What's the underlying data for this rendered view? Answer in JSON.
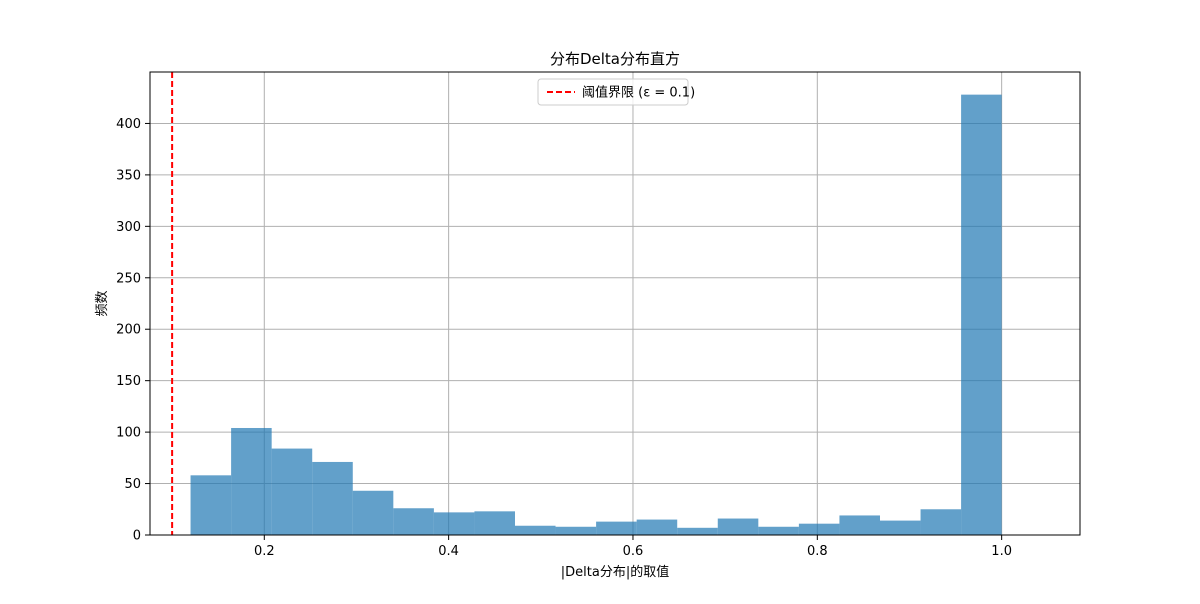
{
  "chart_data": {
    "type": "bar",
    "title": "分布Delta分布直方",
    "xlabel": "|Delta分布|的取值",
    "ylabel": "频数",
    "xlim": [
      0.076,
      1.085
    ],
    "ylim": [
      0,
      450
    ],
    "grid": true,
    "x_ticks": [
      0.2,
      0.4,
      0.6,
      0.8,
      1.0
    ],
    "x_tick_labels": [
      "0.2",
      "0.4",
      "0.6",
      "0.8",
      "1.0"
    ],
    "y_ticks": [
      0,
      50,
      100,
      150,
      200,
      250,
      300,
      350,
      400
    ],
    "y_tick_labels": [
      "0",
      "50",
      "100",
      "150",
      "200",
      "250",
      "300",
      "350",
      "400"
    ],
    "bins": [
      {
        "x0": 0.12,
        "x1": 0.164,
        "value": 58
      },
      {
        "x0": 0.164,
        "x1": 0.208,
        "value": 104
      },
      {
        "x0": 0.208,
        "x1": 0.252,
        "value": 84
      },
      {
        "x0": 0.252,
        "x1": 0.296,
        "value": 71
      },
      {
        "x0": 0.296,
        "x1": 0.34,
        "value": 43
      },
      {
        "x0": 0.34,
        "x1": 0.384,
        "value": 26
      },
      {
        "x0": 0.384,
        "x1": 0.428,
        "value": 22
      },
      {
        "x0": 0.428,
        "x1": 0.472,
        "value": 23
      },
      {
        "x0": 0.472,
        "x1": 0.516,
        "value": 9
      },
      {
        "x0": 0.516,
        "x1": 0.56,
        "value": 8
      },
      {
        "x0": 0.56,
        "x1": 0.604,
        "value": 13
      },
      {
        "x0": 0.604,
        "x1": 0.648,
        "value": 15
      },
      {
        "x0": 0.648,
        "x1": 0.692,
        "value": 7
      },
      {
        "x0": 0.692,
        "x1": 0.736,
        "value": 16
      },
      {
        "x0": 0.736,
        "x1": 0.78,
        "value": 8
      },
      {
        "x0": 0.78,
        "x1": 0.824,
        "value": 11
      },
      {
        "x0": 0.824,
        "x1": 0.868,
        "value": 19
      },
      {
        "x0": 0.868,
        "x1": 0.912,
        "value": 14
      },
      {
        "x0": 0.912,
        "x1": 0.956,
        "value": 25
      },
      {
        "x0": 0.956,
        "x1": 1.0,
        "value": 428
      }
    ],
    "threshold_line": {
      "x": 0.1,
      "label": "阈值界限 (ε = 0.1)"
    },
    "legend_position": "top-center",
    "colors": {
      "bar": "#1f77b4",
      "threshold": "#ff0000",
      "grid": "#b0b0b0"
    }
  }
}
